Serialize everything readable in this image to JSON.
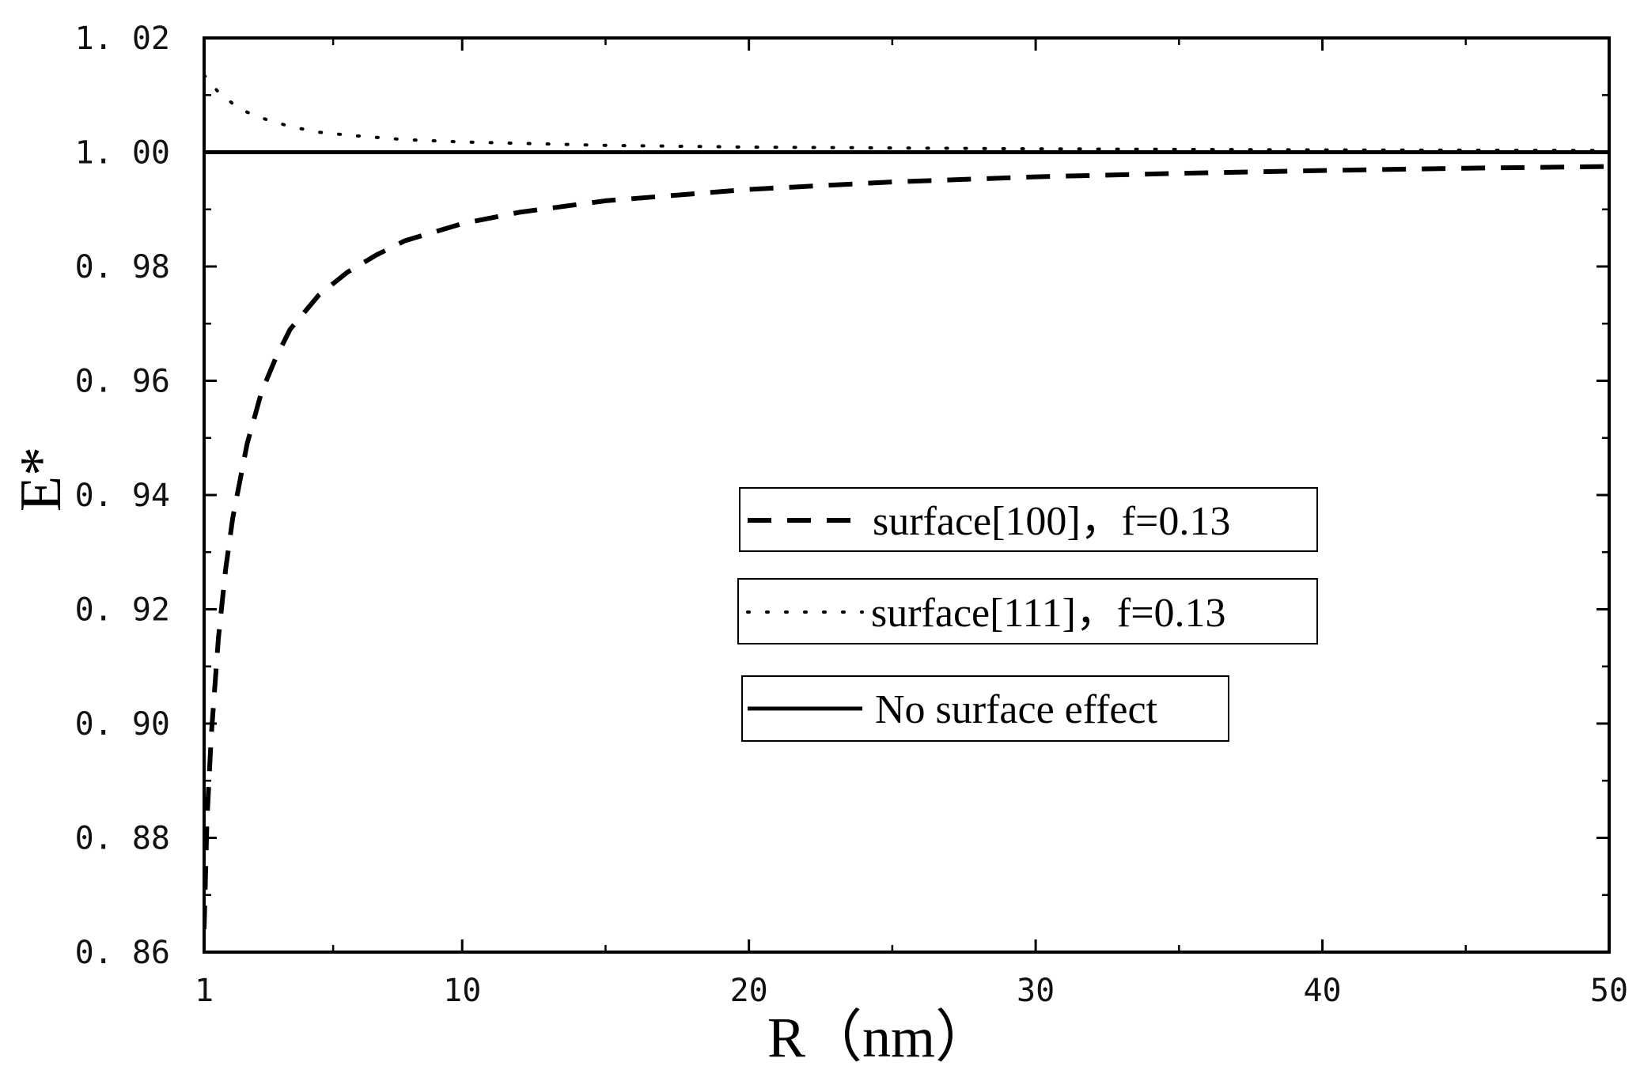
{
  "chart_data": {
    "type": "line",
    "title": "",
    "xlabel": "R（nm）",
    "ylabel": "E*",
    "xlim": [
      1,
      50
    ],
    "ylim": [
      0.86,
      1.02
    ],
    "x_ticks": [
      1,
      10,
      20,
      30,
      40,
      50
    ],
    "x_tick_labels": [
      "1",
      "10",
      "20",
      "30",
      "40",
      "50"
    ],
    "y_ticks": [
      0.86,
      0.88,
      0.9,
      0.92,
      0.94,
      0.96,
      0.98,
      1.0,
      1.02
    ],
    "y_tick_labels": [
      "0. 86",
      "0. 88",
      "0. 90",
      "0. 92",
      "0. 94",
      "0. 96",
      "0. 98",
      "1. 00",
      "1. 02"
    ],
    "grid": false,
    "legend_position": "center-right",
    "series": [
      {
        "name": "surface[100]，f=0.13",
        "style": "dashed",
        "x": [
          1,
          1.1,
          1.25,
          1.5,
          1.75,
          2,
          2.5,
          3,
          3.5,
          4,
          5,
          6,
          7,
          8,
          10,
          12,
          15,
          20,
          25,
          30,
          35,
          40,
          45,
          50
        ],
        "y": [
          0.864,
          0.883,
          0.898,
          0.915,
          0.927,
          0.936,
          0.949,
          0.958,
          0.964,
          0.969,
          0.975,
          0.979,
          0.982,
          0.9845,
          0.9875,
          0.9895,
          0.9915,
          0.9935,
          0.9948,
          0.9957,
          0.9963,
          0.9968,
          0.9972,
          0.9975
        ]
      },
      {
        "name": "surface[111]，f=0.13",
        "style": "dotted",
        "x": [
          1,
          1.25,
          1.5,
          2,
          2.5,
          3,
          4,
          5,
          6,
          8,
          10,
          15,
          20,
          30,
          40,
          50
        ],
        "y": [
          1.0135,
          1.012,
          1.0105,
          1.0085,
          1.007,
          1.006,
          1.0045,
          1.0035,
          1.003,
          1.0022,
          1.0018,
          1.0012,
          1.0009,
          1.0006,
          1.0004,
          1.0003
        ]
      },
      {
        "name": "No surface effect",
        "style": "solid",
        "x": [
          1,
          50
        ],
        "y": [
          1.0,
          1.0
        ]
      }
    ]
  }
}
